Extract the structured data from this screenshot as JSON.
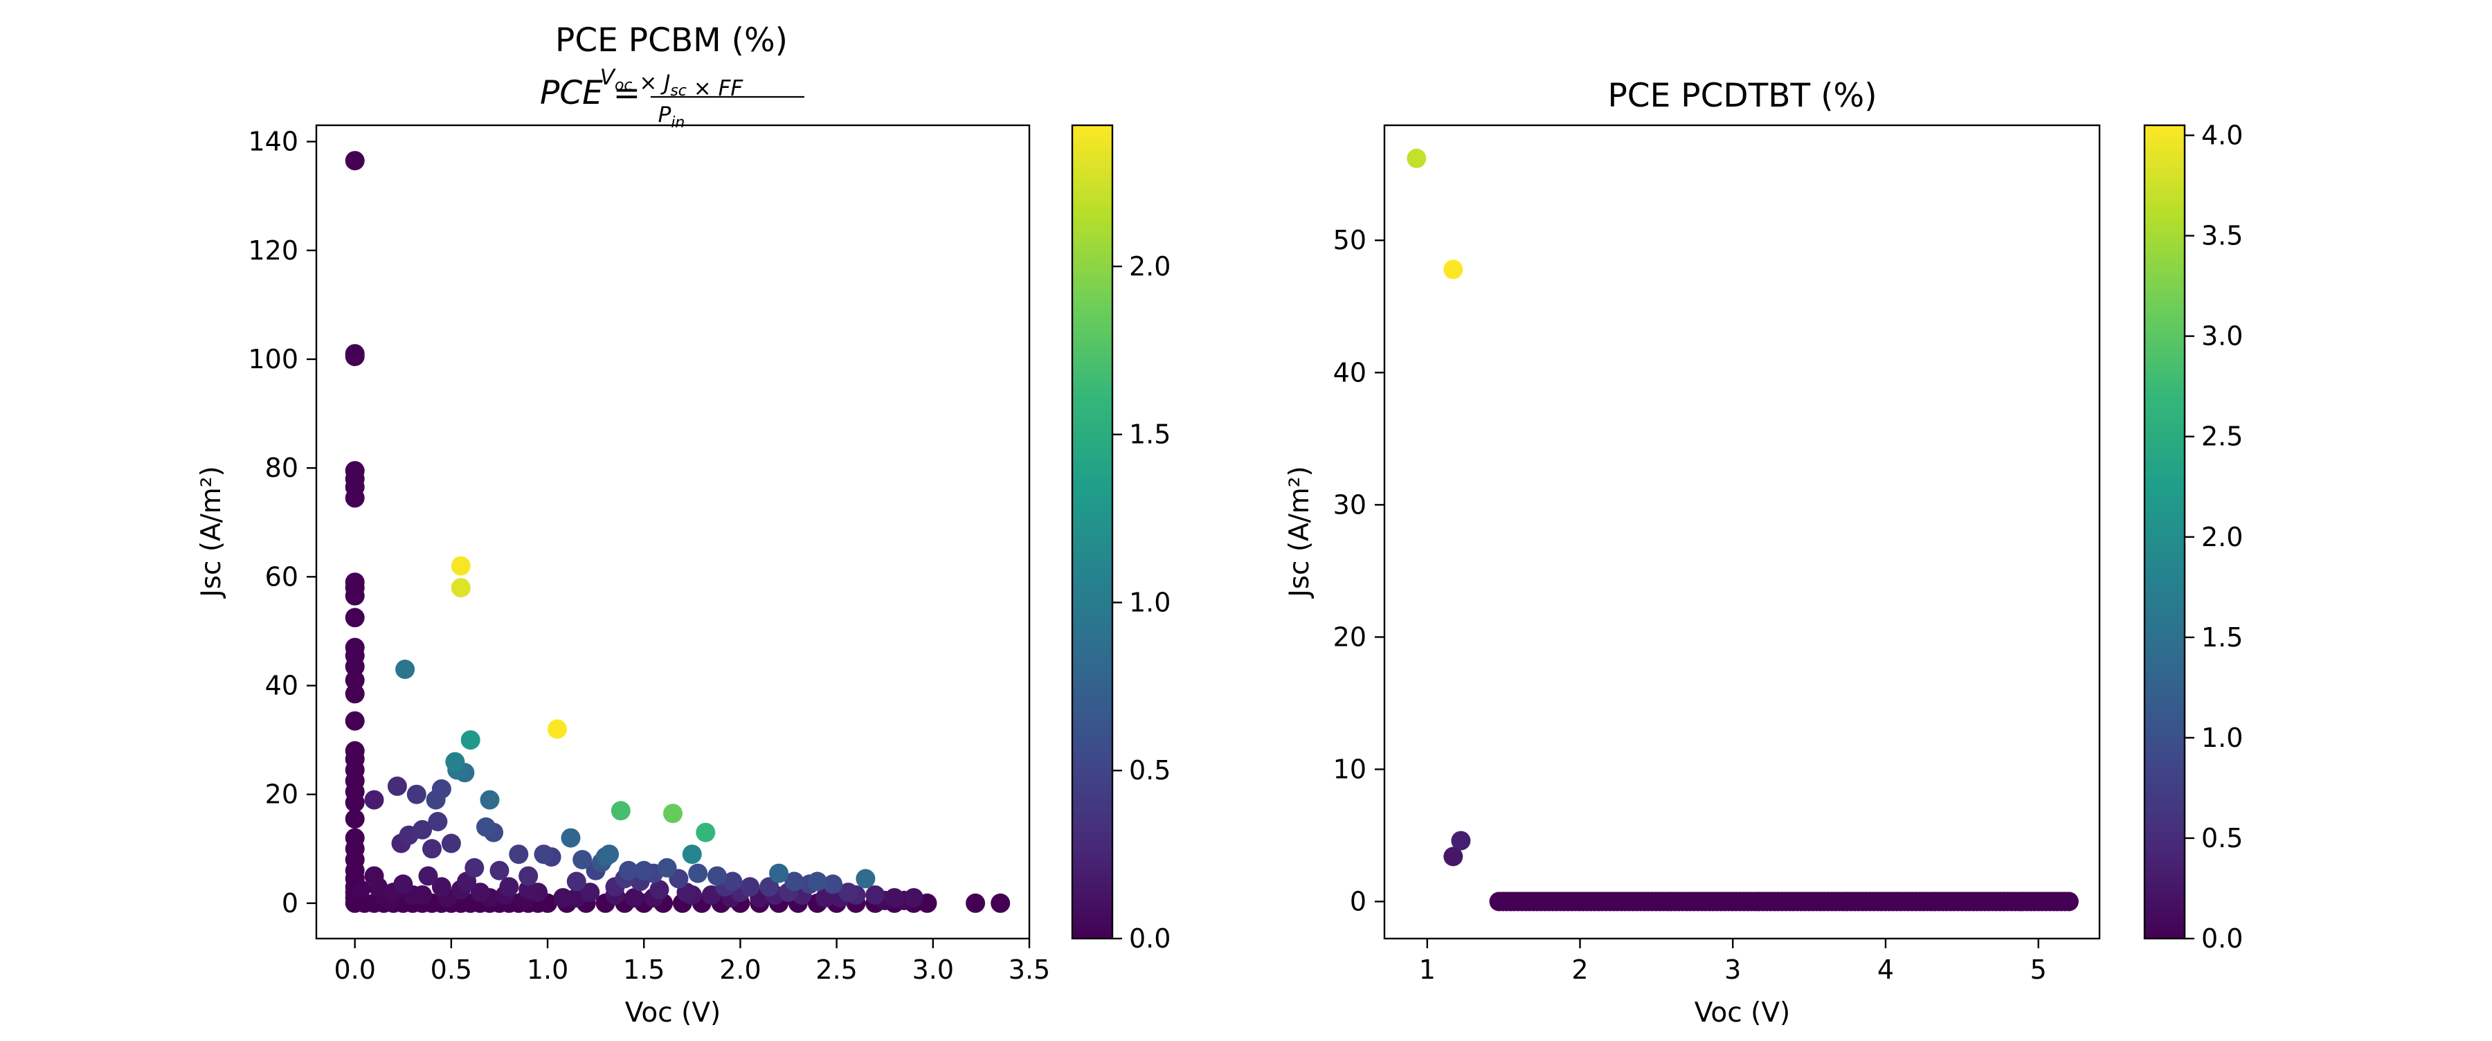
{
  "colormap": {
    "name": "viridis",
    "stops": [
      "#440154",
      "#482878",
      "#3e4989",
      "#31688e",
      "#26828e",
      "#1f9e89",
      "#35b779",
      "#6ece58",
      "#b5de2b",
      "#fde725"
    ]
  },
  "chart_data": [
    {
      "type": "scatter",
      "title": "PCE PCBM (%)",
      "formula": {
        "lhs": "PCE",
        "eq": "=",
        "numerator": [
          [
            "V",
            "oc"
          ],
          [
            "×",
            ""
          ],
          [
            "J",
            "sc"
          ],
          [
            "×",
            ""
          ],
          [
            "FF",
            ""
          ]
        ],
        "denominator": [
          [
            "P",
            "in"
          ]
        ]
      },
      "xlabel": "Voc (V)",
      "ylabel": "Jsc (A/m²)",
      "xlim": [
        -0.2,
        3.5
      ],
      "ylim": [
        -6.5,
        143
      ],
      "xticks": [
        0.0,
        0.5,
        1.0,
        1.5,
        2.0,
        2.5,
        3.0,
        3.5
      ],
      "xtick_labels": [
        "0.0",
        "0.5",
        "1.0",
        "1.5",
        "2.0",
        "2.5",
        "3.0",
        "3.5"
      ],
      "yticks": [
        0,
        20,
        40,
        60,
        80,
        100,
        120,
        140
      ],
      "ytick_labels": [
        "0",
        "20",
        "40",
        "60",
        "80",
        "100",
        "120",
        "140"
      ],
      "colorbar": {
        "range": [
          0,
          2.42
        ],
        "ticks": [
          0.0,
          0.5,
          1.0,
          1.5,
          2.0
        ],
        "tick_labels": [
          "0.0",
          "0.5",
          "1.0",
          "1.5",
          "2.0"
        ]
      },
      "grid": false,
      "points": [
        [
          0.0,
          136.5,
          0.0
        ],
        [
          0.0,
          101.0,
          0.0
        ],
        [
          0.0,
          100.5,
          0.0
        ],
        [
          0.0,
          79.5,
          0.0
        ],
        [
          0.0,
          78.0,
          0.0
        ],
        [
          0.0,
          76.5,
          0.0
        ],
        [
          0.0,
          74.5,
          0.0
        ],
        [
          0.0,
          59.0,
          0.0
        ],
        [
          0.0,
          58.0,
          0.0
        ],
        [
          0.0,
          56.5,
          0.0
        ],
        [
          0.0,
          52.5,
          0.0
        ],
        [
          0.0,
          47.0,
          0.0
        ],
        [
          0.0,
          45.5,
          0.0
        ],
        [
          0.0,
          43.5,
          0.0
        ],
        [
          0.0,
          41.0,
          0.0
        ],
        [
          0.0,
          38.5,
          0.0
        ],
        [
          0.0,
          33.5,
          0.0
        ],
        [
          0.0,
          28.0,
          0.0
        ],
        [
          0.0,
          26.5,
          0.0
        ],
        [
          0.0,
          24.5,
          0.0
        ],
        [
          0.0,
          22.5,
          0.0
        ],
        [
          0.0,
          20.5,
          0.0
        ],
        [
          0.0,
          18.5,
          0.0
        ],
        [
          0.0,
          15.5,
          0.0
        ],
        [
          0.0,
          12.0,
          0.0
        ],
        [
          0.0,
          10.0,
          0.0
        ],
        [
          0.0,
          8.0,
          0.0
        ],
        [
          0.0,
          6.0,
          0.0
        ],
        [
          0.0,
          4.5,
          0.0
        ],
        [
          0.0,
          3.0,
          0.0
        ],
        [
          0.0,
          2.0,
          0.0
        ],
        [
          0.0,
          1.0,
          0.0
        ],
        [
          0.0,
          0.0,
          0.0
        ],
        [
          0.02,
          0.5,
          0.0
        ],
        [
          0.03,
          2.5,
          0.02
        ],
        [
          0.1,
          19.0,
          0.2
        ],
        [
          0.1,
          5.0,
          0.05
        ],
        [
          0.12,
          3.0,
          0.04
        ],
        [
          0.15,
          1.5,
          0.03
        ],
        [
          0.18,
          0.5,
          0.02
        ],
        [
          0.22,
          21.5,
          0.3
        ],
        [
          0.24,
          11.0,
          0.25
        ],
        [
          0.25,
          3.5,
          0.1
        ],
        [
          0.26,
          43.0,
          0.95
        ],
        [
          0.28,
          12.5,
          0.3
        ],
        [
          0.3,
          1.5,
          0.05
        ],
        [
          0.32,
          20.0,
          0.4
        ],
        [
          0.35,
          13.5,
          0.35
        ],
        [
          0.38,
          5.0,
          0.15
        ],
        [
          0.4,
          10.0,
          0.3
        ],
        [
          0.42,
          19.0,
          0.5
        ],
        [
          0.43,
          15.0,
          0.4
        ],
        [
          0.45,
          21.0,
          0.5
        ],
        [
          0.45,
          3.0,
          0.1
        ],
        [
          0.48,
          1.0,
          0.05
        ],
        [
          0.5,
          11.0,
          0.35
        ],
        [
          0.52,
          26.0,
          1.05
        ],
        [
          0.53,
          24.5,
          0.95
        ],
        [
          0.55,
          62.0,
          2.4
        ],
        [
          0.55,
          58.0,
          2.3
        ],
        [
          0.57,
          24.0,
          0.9
        ],
        [
          0.58,
          4.0,
          0.15
        ],
        [
          0.6,
          30.0,
          1.3
        ],
        [
          0.62,
          6.5,
          0.3
        ],
        [
          0.65,
          2.0,
          0.1
        ],
        [
          0.68,
          14.0,
          0.6
        ],
        [
          0.7,
          19.0,
          0.85
        ],
        [
          0.72,
          13.0,
          0.55
        ],
        [
          0.75,
          6.0,
          0.3
        ],
        [
          0.78,
          1.5,
          0.08
        ],
        [
          0.8,
          3.0,
          0.15
        ],
        [
          0.85,
          9.0,
          0.45
        ],
        [
          0.88,
          0.5,
          0.02
        ],
        [
          0.9,
          5.0,
          0.3
        ],
        [
          0.95,
          2.0,
          0.1
        ],
        [
          0.98,
          9.0,
          0.5
        ],
        [
          1.02,
          8.5,
          0.45
        ],
        [
          1.05,
          32.0,
          2.42
        ],
        [
          1.08,
          1.0,
          0.08
        ],
        [
          1.12,
          12.0,
          0.8
        ],
        [
          1.15,
          4.0,
          0.3
        ],
        [
          1.18,
          8.0,
          0.6
        ],
        [
          1.22,
          2.0,
          0.15
        ],
        [
          1.25,
          6.0,
          0.5
        ],
        [
          1.28,
          7.5,
          0.65
        ],
        [
          1.3,
          8.5,
          0.75
        ],
        [
          1.32,
          9.0,
          0.8
        ],
        [
          1.35,
          3.0,
          0.25
        ],
        [
          1.38,
          17.0,
          1.7
        ],
        [
          1.4,
          4.5,
          0.4
        ],
        [
          1.42,
          6.0,
          0.55
        ],
        [
          1.45,
          1.0,
          0.08
        ],
        [
          1.48,
          4.0,
          0.35
        ],
        [
          1.5,
          6.0,
          0.55
        ],
        [
          1.55,
          5.5,
          0.5
        ],
        [
          1.58,
          2.5,
          0.2
        ],
        [
          1.62,
          6.5,
          0.6
        ],
        [
          1.65,
          16.5,
          1.85
        ],
        [
          1.68,
          4.5,
          0.45
        ],
        [
          1.72,
          2.0,
          0.18
        ],
        [
          1.75,
          9.0,
          1.1
        ],
        [
          1.78,
          5.5,
          0.6
        ],
        [
          1.82,
          13.0,
          1.6
        ],
        [
          1.85,
          1.5,
          0.15
        ],
        [
          1.88,
          5.0,
          0.55
        ],
        [
          1.92,
          3.0,
          0.35
        ],
        [
          1.96,
          4.0,
          0.45
        ],
        [
          2.0,
          2.0,
          0.25
        ],
        [
          2.05,
          3.0,
          0.35
        ],
        [
          2.1,
          1.0,
          0.12
        ],
        [
          2.15,
          3.0,
          0.4
        ],
        [
          2.18,
          1.5,
          0.2
        ],
        [
          2.2,
          5.5,
          0.8
        ],
        [
          2.25,
          2.0,
          0.3
        ],
        [
          2.28,
          4.0,
          0.55
        ],
        [
          2.32,
          1.5,
          0.22
        ],
        [
          2.36,
          3.5,
          0.5
        ],
        [
          2.4,
          4.0,
          0.6
        ],
        [
          2.44,
          1.0,
          0.15
        ],
        [
          2.48,
          3.5,
          0.55
        ],
        [
          2.52,
          1.0,
          0.15
        ],
        [
          2.56,
          2.0,
          0.3
        ],
        [
          2.6,
          1.5,
          0.25
        ],
        [
          2.65,
          4.5,
          0.85
        ],
        [
          2.7,
          1.5,
          0.2
        ],
        [
          2.75,
          0.5,
          0.05
        ],
        [
          2.8,
          1.0,
          0.1
        ],
        [
          2.85,
          0.5,
          0.05
        ],
        [
          2.9,
          1.0,
          0.1
        ],
        [
          2.97,
          0.0,
          0.0
        ],
        [
          3.22,
          0.0,
          0.0
        ],
        [
          3.35,
          0.0,
          0.0
        ],
        [
          0.05,
          0.0,
          0.0
        ],
        [
          0.1,
          0.0,
          0.0
        ],
        [
          0.15,
          0.0,
          0.0
        ],
        [
          0.2,
          0.0,
          0.0
        ],
        [
          0.25,
          0.0,
          0.0
        ],
        [
          0.3,
          0.0,
          0.0
        ],
        [
          0.35,
          0.0,
          0.0
        ],
        [
          0.4,
          0.0,
          0.0
        ],
        [
          0.45,
          0.0,
          0.0
        ],
        [
          0.5,
          0.0,
          0.0
        ],
        [
          0.55,
          0.0,
          0.0
        ],
        [
          0.6,
          0.0,
          0.0
        ],
        [
          0.65,
          0.0,
          0.0
        ],
        [
          0.7,
          0.0,
          0.0
        ],
        [
          0.75,
          0.0,
          0.0
        ],
        [
          0.8,
          0.0,
          0.0
        ],
        [
          0.85,
          0.0,
          0.0
        ],
        [
          0.9,
          0.0,
          0.0
        ],
        [
          0.95,
          0.0,
          0.0
        ],
        [
          1.0,
          0.0,
          0.0
        ],
        [
          1.1,
          0.0,
          0.0
        ],
        [
          1.2,
          0.0,
          0.0
        ],
        [
          1.3,
          0.0,
          0.0
        ],
        [
          1.4,
          0.0,
          0.0
        ],
        [
          1.5,
          0.0,
          0.0
        ],
        [
          1.6,
          0.0,
          0.0
        ],
        [
          1.7,
          0.0,
          0.0
        ],
        [
          1.8,
          0.0,
          0.0
        ],
        [
          1.9,
          0.0,
          0.0
        ],
        [
          2.0,
          0.0,
          0.0
        ],
        [
          2.1,
          0.0,
          0.0
        ],
        [
          2.2,
          0.0,
          0.0
        ],
        [
          2.3,
          0.0,
          0.0
        ],
        [
          2.4,
          0.0,
          0.0
        ],
        [
          2.5,
          0.0,
          0.0
        ],
        [
          2.6,
          0.0,
          0.0
        ],
        [
          2.7,
          0.0,
          0.0
        ],
        [
          2.8,
          0.0,
          0.0
        ],
        [
          2.9,
          0.0,
          0.0
        ],
        [
          0.2,
          2.0,
          0.05
        ],
        [
          0.35,
          1.5,
          0.05
        ],
        [
          0.55,
          2.5,
          0.1
        ],
        [
          0.7,
          1.0,
          0.05
        ],
        [
          0.9,
          2.5,
          0.12
        ],
        [
          1.15,
          1.0,
          0.08
        ],
        [
          1.35,
          1.5,
          0.12
        ],
        [
          1.55,
          1.0,
          0.1
        ],
        [
          1.75,
          1.5,
          0.15
        ],
        [
          1.95,
          1.0,
          0.12
        ]
      ]
    },
    {
      "type": "scatter",
      "title": "PCE PCDTBT (%)",
      "xlabel": "Voc (V)",
      "ylabel": "Jsc (A/m²)",
      "xlim": [
        0.72,
        5.4
      ],
      "ylim": [
        -2.8,
        58.7
      ],
      "xticks": [
        1,
        2,
        3,
        4,
        5
      ],
      "xtick_labels": [
        "1",
        "2",
        "3",
        "4",
        "5"
      ],
      "yticks": [
        0,
        10,
        20,
        30,
        40,
        50
      ],
      "ytick_labels": [
        "0",
        "10",
        "20",
        "30",
        "40",
        "50"
      ],
      "colorbar": {
        "range": [
          0,
          4.05
        ],
        "ticks": [
          0.0,
          0.5,
          1.0,
          1.5,
          2.0,
          2.5,
          3.0,
          3.5,
          4.0
        ],
        "tick_labels": [
          "0.0",
          "0.5",
          "1.0",
          "1.5",
          "2.0",
          "2.5",
          "3.0",
          "3.5",
          "4.0"
        ]
      },
      "grid": false,
      "points": [
        [
          0.93,
          56.2,
          3.7
        ],
        [
          1.17,
          47.8,
          4.05
        ],
        [
          1.17,
          3.4,
          0.25
        ],
        [
          1.22,
          4.6,
          0.35
        ]
      ],
      "baseline_cluster": {
        "x_start": 1.47,
        "x_end": 5.2,
        "count": 150,
        "y": 0.0,
        "value": 0.0
      }
    }
  ]
}
